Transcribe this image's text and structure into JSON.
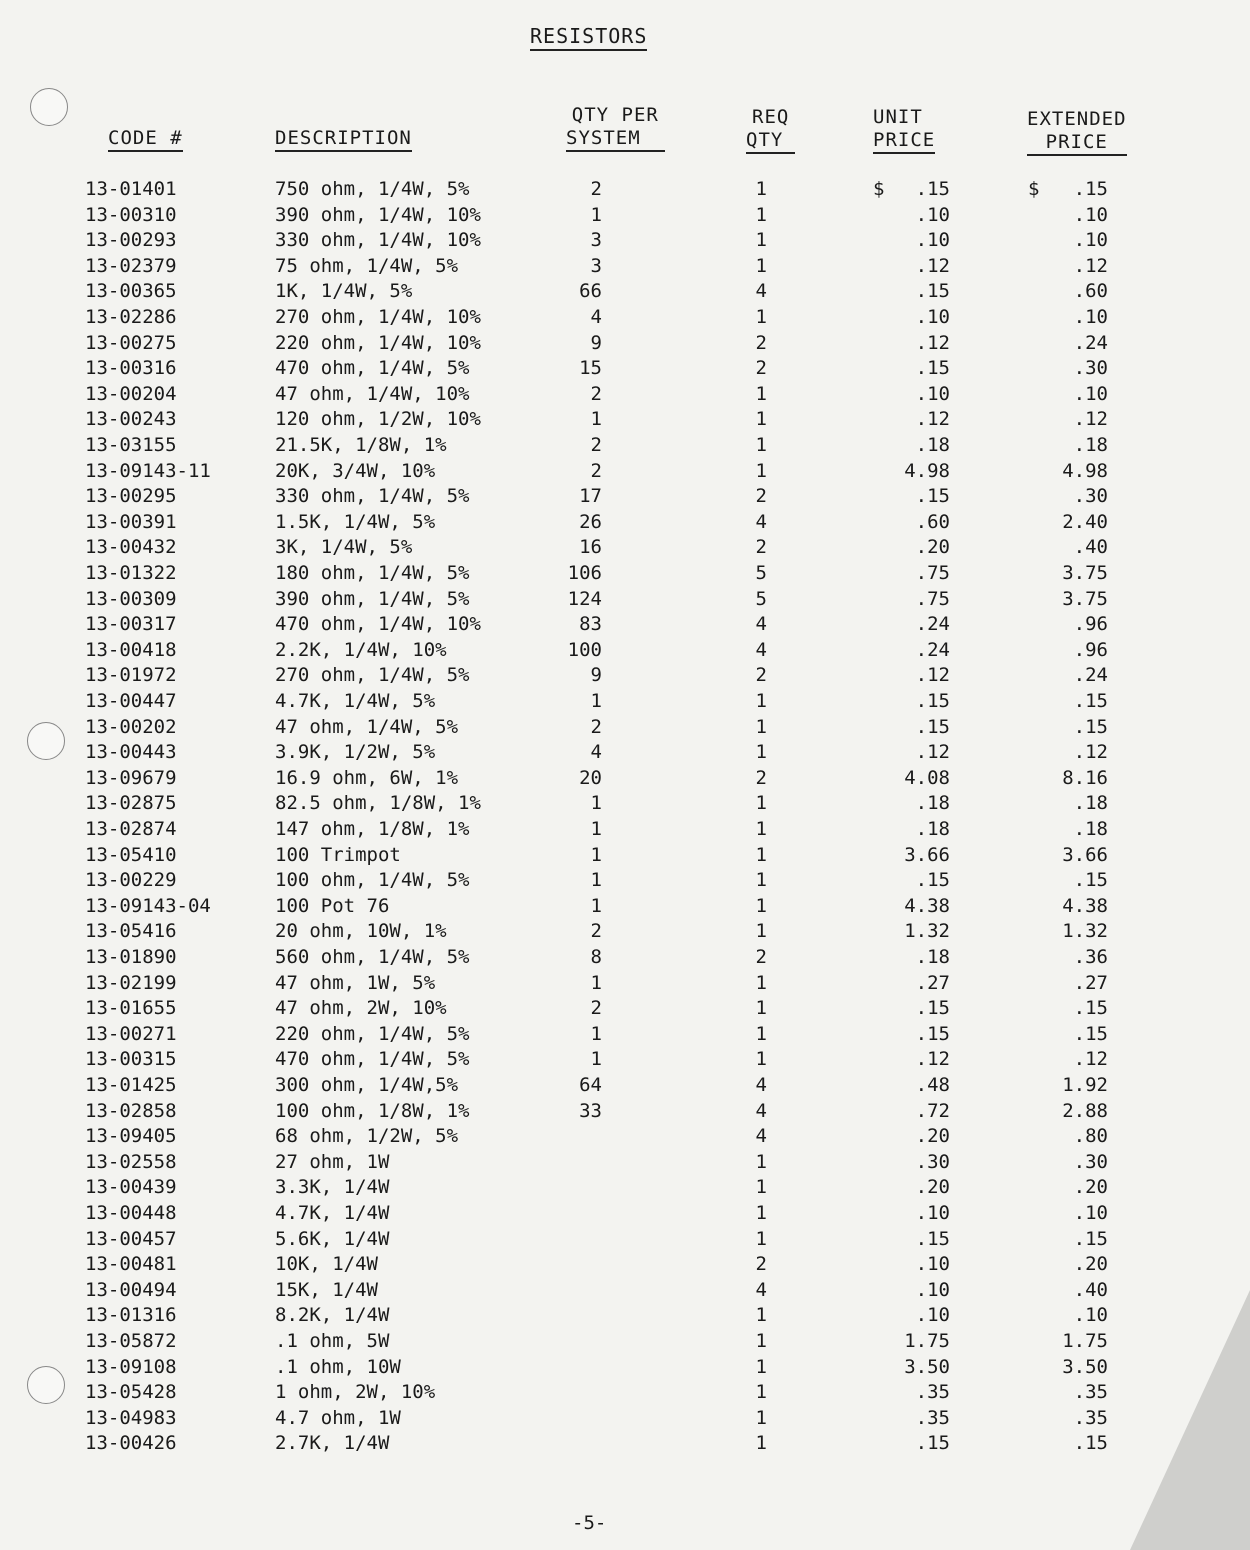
{
  "title": "RESISTORS",
  "headers": {
    "code": "CODE #",
    "description": "DESCRIPTION",
    "qty_per_system": [
      "QTY PER",
      "SYSTEM"
    ],
    "req_qty": [
      "REQ",
      "QTY"
    ],
    "unit_price": [
      "UNIT",
      "PRICE"
    ],
    "extended_price": [
      "EXTENDED",
      "PRICE"
    ]
  },
  "currency_symbol": "$",
  "rows": [
    [
      "13-01401",
      "750 ohm, 1/4W, 5%",
      "2",
      "1",
      ".15",
      ".15"
    ],
    [
      "13-00310",
      "390 ohm, 1/4W, 10%",
      "1",
      "1",
      ".10",
      ".10"
    ],
    [
      "13-00293",
      "330 ohm, 1/4W, 10%",
      "3",
      "1",
      ".10",
      ".10"
    ],
    [
      "13-02379",
      "75 ohm, 1/4W, 5%",
      "3",
      "1",
      ".12",
      ".12"
    ],
    [
      "13-00365",
      "1K, 1/4W, 5%",
      "66",
      "4",
      ".15",
      ".60"
    ],
    [
      "13-02286",
      "270 ohm, 1/4W, 10%",
      "4",
      "1",
      ".10",
      ".10"
    ],
    [
      "13-00275",
      "220 ohm, 1/4W, 10%",
      "9",
      "2",
      ".12",
      ".24"
    ],
    [
      "13-00316",
      "470 ohm, 1/4W, 5%",
      "15",
      "2",
      ".15",
      ".30"
    ],
    [
      "13-00204",
      "47 ohm, 1/4W, 10%",
      "2",
      "1",
      ".10",
      ".10"
    ],
    [
      "13-00243",
      "120 ohm, 1/2W, 10%",
      "1",
      "1",
      ".12",
      ".12"
    ],
    [
      "13-03155",
      "21.5K, 1/8W, 1%",
      "2",
      "1",
      ".18",
      ".18"
    ],
    [
      "13-09143-11",
      "20K, 3/4W, 10%",
      "2",
      "1",
      "4.98",
      "4.98"
    ],
    [
      "13-00295",
      "330 ohm, 1/4W, 5%",
      "17",
      "2",
      ".15",
      ".30"
    ],
    [
      "13-00391",
      "1.5K, 1/4W, 5%",
      "26",
      "4",
      ".60",
      "2.40"
    ],
    [
      "13-00432",
      "3K, 1/4W, 5%",
      "16",
      "2",
      ".20",
      ".40"
    ],
    [
      "13-01322",
      "180 ohm, 1/4W, 5%",
      "106",
      "5",
      ".75",
      "3.75"
    ],
    [
      "13-00309",
      "390 ohm, 1/4W, 5%",
      "124",
      "5",
      ".75",
      "3.75"
    ],
    [
      "13-00317",
      "470 ohm, 1/4W, 10%",
      "83",
      "4",
      ".24",
      ".96"
    ],
    [
      "13-00418",
      "2.2K, 1/4W, 10%",
      "100",
      "4",
      ".24",
      ".96"
    ],
    [
      "13-01972",
      "270 ohm, 1/4W, 5%",
      "9",
      "2",
      ".12",
      ".24"
    ],
    [
      "13-00447",
      "4.7K, 1/4W, 5%",
      "1",
      "1",
      ".15",
      ".15"
    ],
    [
      "13-00202",
      "47 ohm, 1/4W, 5%",
      "2",
      "1",
      ".15",
      ".15"
    ],
    [
      "13-00443",
      "3.9K, 1/2W, 5%",
      "4",
      "1",
      ".12",
      ".12"
    ],
    [
      "13-09679",
      "16.9 ohm, 6W, 1%",
      "20",
      "2",
      "4.08",
      "8.16"
    ],
    [
      "13-02875",
      "82.5 ohm, 1/8W, 1%",
      "1",
      "1",
      ".18",
      ".18"
    ],
    [
      "13-02874",
      "147 ohm, 1/8W, 1%",
      "1",
      "1",
      ".18",
      ".18"
    ],
    [
      "13-05410",
      "100 Trimpot",
      "1",
      "1",
      "3.66",
      "3.66"
    ],
    [
      "13-00229",
      "100 ohm, 1/4W, 5%",
      "1",
      "1",
      ".15",
      ".15"
    ],
    [
      "13-09143-04",
      "100 Pot 76",
      "1",
      "1",
      "4.38",
      "4.38"
    ],
    [
      "13-05416",
      "20 ohm, 10W, 1%",
      "2",
      "1",
      "1.32",
      "1.32"
    ],
    [
      "13-01890",
      "560 ohm, 1/4W, 5%",
      "8",
      "2",
      ".18",
      ".36"
    ],
    [
      "13-02199",
      "47 ohm, 1W, 5%",
      "1",
      "1",
      ".27",
      ".27"
    ],
    [
      "13-01655",
      "47 ohm, 2W, 10%",
      "2",
      "1",
      ".15",
      ".15"
    ],
    [
      "13-00271",
      "220 ohm, 1/4W, 5%",
      "1",
      "1",
      ".15",
      ".15"
    ],
    [
      "13-00315",
      "470 ohm, 1/4W, 5%",
      "1",
      "1",
      ".12",
      ".12"
    ],
    [
      "13-01425",
      "300 ohm, 1/4W,5%",
      "64",
      "4",
      ".48",
      "1.92"
    ],
    [
      "13-02858",
      "100 ohm, 1/8W, 1%",
      "33",
      "4",
      ".72",
      "2.88"
    ],
    [
      "13-09405",
      "68 ohm, 1/2W, 5%",
      "",
      "4",
      ".20",
      ".80"
    ],
    [
      "13-02558",
      "27 ohm, 1W",
      "",
      "1",
      ".30",
      ".30"
    ],
    [
      "13-00439",
      "3.3K, 1/4W",
      "",
      "1",
      ".20",
      ".20"
    ],
    [
      "13-00448",
      "4.7K, 1/4W",
      "",
      "1",
      ".10",
      ".10"
    ],
    [
      "13-00457",
      "5.6K, 1/4W",
      "",
      "1",
      ".15",
      ".15"
    ],
    [
      "13-00481",
      "10K, 1/4W",
      "",
      "2",
      ".10",
      ".20"
    ],
    [
      "13-00494",
      "15K, 1/4W",
      "",
      "4",
      ".10",
      ".40"
    ],
    [
      "13-01316",
      "8.2K, 1/4W",
      "",
      "1",
      ".10",
      ".10"
    ],
    [
      "13-05872",
      ".1 ohm, 5W",
      "",
      "1",
      "1.75",
      "1.75"
    ],
    [
      "13-09108",
      ".1 ohm, 10W",
      "",
      "1",
      "3.50",
      "3.50"
    ],
    [
      "13-05428",
      "1 ohm, 2W, 10%",
      "",
      "1",
      ".35",
      ".35"
    ],
    [
      "13-04983",
      "4.7 ohm, 1W",
      "",
      "1",
      ".35",
      ".35"
    ],
    [
      "13-00426",
      "2.7K, 1/4W",
      "",
      "1",
      ".15",
      ".15"
    ]
  ],
  "page_number": "-5-"
}
